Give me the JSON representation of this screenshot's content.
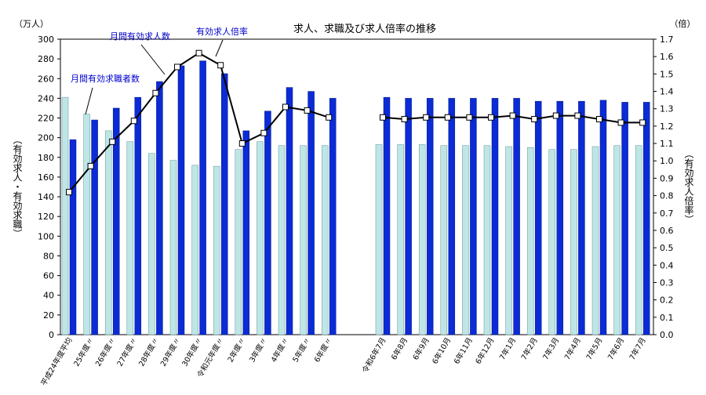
{
  "chart_data": {
    "type": "bar",
    "title": "求人、求職及び求人倍率の推移",
    "y_left_unit": "（万人）",
    "y_right_unit": "（倍）",
    "y_left_label": "（有効求人・有効求職）",
    "y_right_label": "（有効求人倍率）",
    "y_left_lim": [
      0,
      300
    ],
    "y_left_ticks": [
      0,
      20,
      40,
      60,
      80,
      100,
      120,
      140,
      160,
      180,
      200,
      220,
      240,
      260,
      280,
      300
    ],
    "y_right_lim": [
      0,
      1.7
    ],
    "y_right_ticks": [
      "0.0",
      "0.1",
      "0.2",
      "0.3",
      "0.4",
      "0.5",
      "0.6",
      "0.7",
      "0.8",
      "0.9",
      "1.0",
      "1.1",
      "1.2",
      "1.3",
      "1.4",
      "1.5",
      "1.6",
      "1.7"
    ],
    "grid": false,
    "categories": [
      "平成24年度平均",
      "25年度〃",
      "26年度〃",
      "27年度〃",
      "28年度〃",
      "29年度〃",
      "30年度〃",
      "令和元年度〃",
      "2年度〃",
      "3年度〃",
      "4年度〃",
      "5年度〃",
      "6年度〃",
      "令和6年7月",
      "6年8月",
      "6年9月",
      "6年10月",
      "6年11月",
      "6年12月",
      "7年1月",
      "7年2月",
      "7年3月",
      "7年4月",
      "7年5月",
      "7年6月",
      "7年7月"
    ],
    "series": [
      {
        "name": "月間有効求職者数",
        "color": "#bfe6e6",
        "values": [
          241,
          224,
          207,
          196,
          184,
          177,
          172,
          171,
          188,
          196,
          192,
          192,
          192,
          193,
          193,
          193,
          192,
          192,
          192,
          191,
          190,
          188,
          188,
          191,
          192,
          192
        ]
      },
      {
        "name": "月間有効求人数",
        "color": "#0a2bd6",
        "values": [
          198,
          218,
          230,
          241,
          257,
          273,
          278,
          265,
          207,
          227,
          251,
          247,
          240,
          241,
          240,
          240,
          240,
          240,
          240,
          240,
          237,
          237,
          237,
          238,
          236,
          236
        ]
      },
      {
        "name": "有効求人倍率",
        "type": "line",
        "axis": "right",
        "values": [
          0.82,
          0.97,
          1.11,
          1.23,
          1.39,
          1.54,
          1.62,
          1.55,
          1.1,
          1.16,
          1.31,
          1.29,
          1.25,
          1.25,
          1.24,
          1.25,
          1.25,
          1.25,
          1.25,
          1.26,
          1.24,
          1.26,
          1.26,
          1.24,
          1.22,
          1.22
        ]
      }
    ],
    "annotations": [
      "月間有効求職者数",
      "月間有効求人数",
      "有効求人倍率"
    ]
  }
}
